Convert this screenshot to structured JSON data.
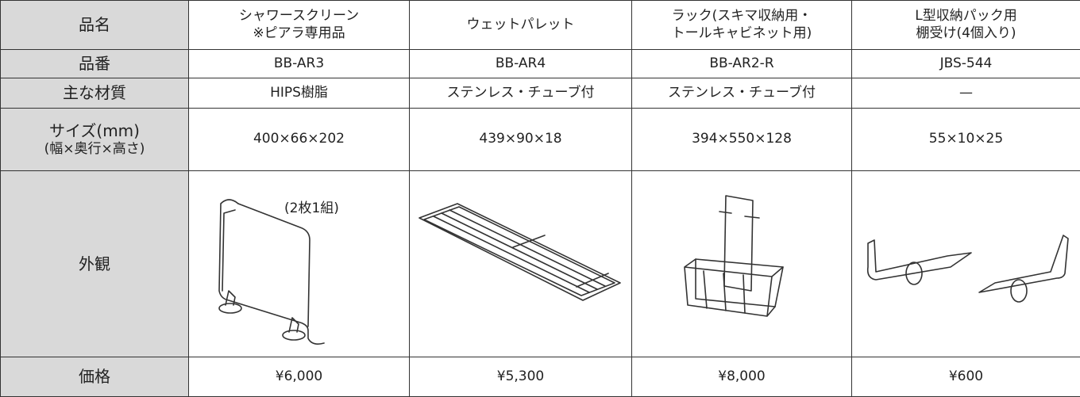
{
  "table": {
    "rows": [
      [
        [
          "品名"
        ],
        [
          "シャワースクリーン",
          "※ピアラ専用品"
        ],
        [
          "ウェットパレット"
        ],
        [
          "ラック(スキマ収納用・",
          "トールキャビネット用)"
        ],
        [
          "L型収納パック用",
          "棚受け(4個入り)"
        ]
      ],
      [
        [
          "品番"
        ],
        [
          "BB-AR3"
        ],
        [
          "BB-AR4"
        ],
        [
          "BB-AR2-R"
        ],
        [
          "JBS-544"
        ]
      ],
      [
        [
          "主な材質"
        ],
        [
          "HIPS樹脂"
        ],
        [
          "ステンレス・チューブ付"
        ],
        [
          "ステンレス・チューブ付"
        ],
        [
          "—"
        ]
      ],
      [
        [
          "サイズ(mm)",
          "(幅×奥行×高さ)"
        ],
        [
          "400×66×202"
        ],
        [
          "439×90×18"
        ],
        [
          "394×550×128"
        ],
        [
          "55×10×25"
        ]
      ],
      [
        [
          "外観"
        ]
      ],
      [
        [
          "価格"
        ],
        [
          "¥6,000"
        ],
        [
          "¥5,300"
        ],
        [
          "¥8,000"
        ],
        [
          "¥600"
        ]
      ]
    ],
    "image_note": "(2枚1組)"
  }
}
